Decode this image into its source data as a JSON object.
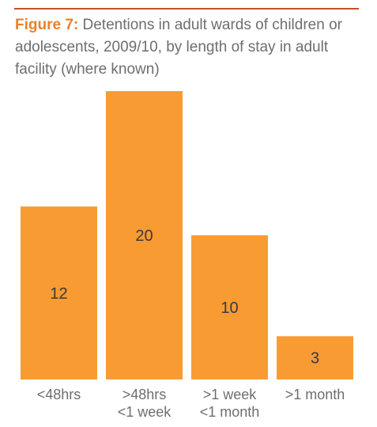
{
  "figure_label": "Figure 7:",
  "figure_title": "Detentions in adult wards of children or adolescents, 2009/10, by length of stay in adult facility (where known)",
  "colors": {
    "bar": "#f89b33",
    "rule": "#c0522c",
    "figure_label": "#e8812b",
    "text": "#6d6e71"
  },
  "chart_data": {
    "type": "bar",
    "categories": [
      [
        ">",
        "<48hrs"
      ],
      [
        ">48hrs",
        "<1 week"
      ],
      [
        ">1 week",
        "<1 month"
      ],
      [
        ">1 month"
      ]
    ],
    "values": [
      12,
      20,
      10,
      3
    ],
    "title": "Detentions in adult wards of children or adolescents, 2009/10, by length of stay in adult facility (where known)",
    "xlabel": "",
    "ylabel": "",
    "ylim": [
      0,
      20
    ],
    "grid": false,
    "legend": "none",
    "data_labels": true
  }
}
